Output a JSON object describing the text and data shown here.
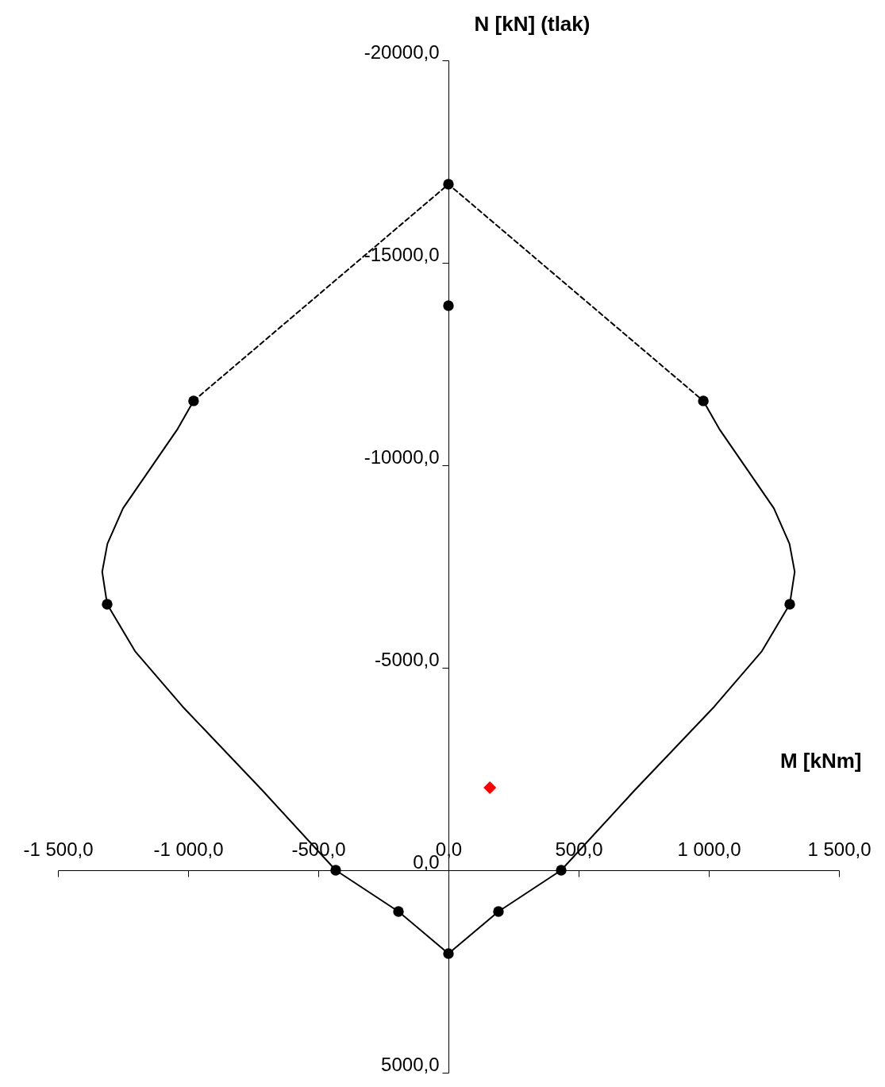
{
  "chart_data": {
    "type": "line",
    "xlabel": "M [kNm]",
    "ylabel": "N [kN] (tlak)",
    "xlim": [
      -1500,
      1500
    ],
    "ylim": [
      5000,
      -20000
    ],
    "xticks": [
      {
        "value": -1500,
        "label": "-1 500,0"
      },
      {
        "value": -1000,
        "label": "-1 000,0"
      },
      {
        "value": -500,
        "label": "-500,0"
      },
      {
        "value": 0,
        "label": "0,0"
      },
      {
        "value": 500,
        "label": "500,0"
      },
      {
        "value": 1000,
        "label": "1 000,0"
      },
      {
        "value": 1500,
        "label": "1 500,0"
      }
    ],
    "yticks": [
      {
        "value": -20000,
        "label": "-20000,0"
      },
      {
        "value": -15000,
        "label": "-15000,0"
      },
      {
        "value": -10000,
        "label": "-10000,0"
      },
      {
        "value": -5000,
        "label": "-5000,0"
      },
      {
        "value": 0,
        "label": "0,0"
      },
      {
        "value": 5000,
        "label": "5000,0"
      }
    ],
    "series": [
      {
        "line_style": "solid",
        "marker": "none",
        "color": "#000000",
        "x": [
          -979,
          -1040,
          -1145,
          -1250,
          -1310,
          -1330,
          -1311,
          -1204,
          -1021,
          -716,
          -433,
          -192,
          0,
          192,
          433,
          716,
          1021,
          1204,
          1311,
          1330,
          1310,
          1250,
          1145,
          1040,
          979
        ],
        "values": [
          -11590,
          -10900,
          -9920,
          -8940,
          -8060,
          -7370,
          -6570,
          -5410,
          -4040,
          -1980,
          0,
          1020,
          2060,
          1020,
          0,
          -1980,
          -4040,
          -5410,
          -6570,
          -7370,
          -8060,
          -8940,
          -9920,
          -10900,
          -11590
        ]
      },
      {
        "type": "line",
        "line_style": "dashed",
        "marker": "none",
        "color": "#000000",
        "x": [
          -979,
          0,
          979
        ],
        "values": [
          -11590,
          -16940,
          -11590
        ]
      },
      {
        "type": "scatter",
        "marker": "circle",
        "color": "#000000",
        "x": [
          0,
          0,
          -979,
          979,
          -1311,
          1311,
          -433,
          433,
          -192,
          192,
          0
        ],
        "values": [
          -16940,
          -13940,
          -11590,
          -11590,
          -6570,
          -6570,
          0,
          0,
          1020,
          1020,
          2060
        ]
      },
      {
        "type": "scatter",
        "marker": "diamond",
        "color": "#ff0000",
        "x": [
          159
        ],
        "values": [
          -2040
        ]
      }
    ]
  }
}
